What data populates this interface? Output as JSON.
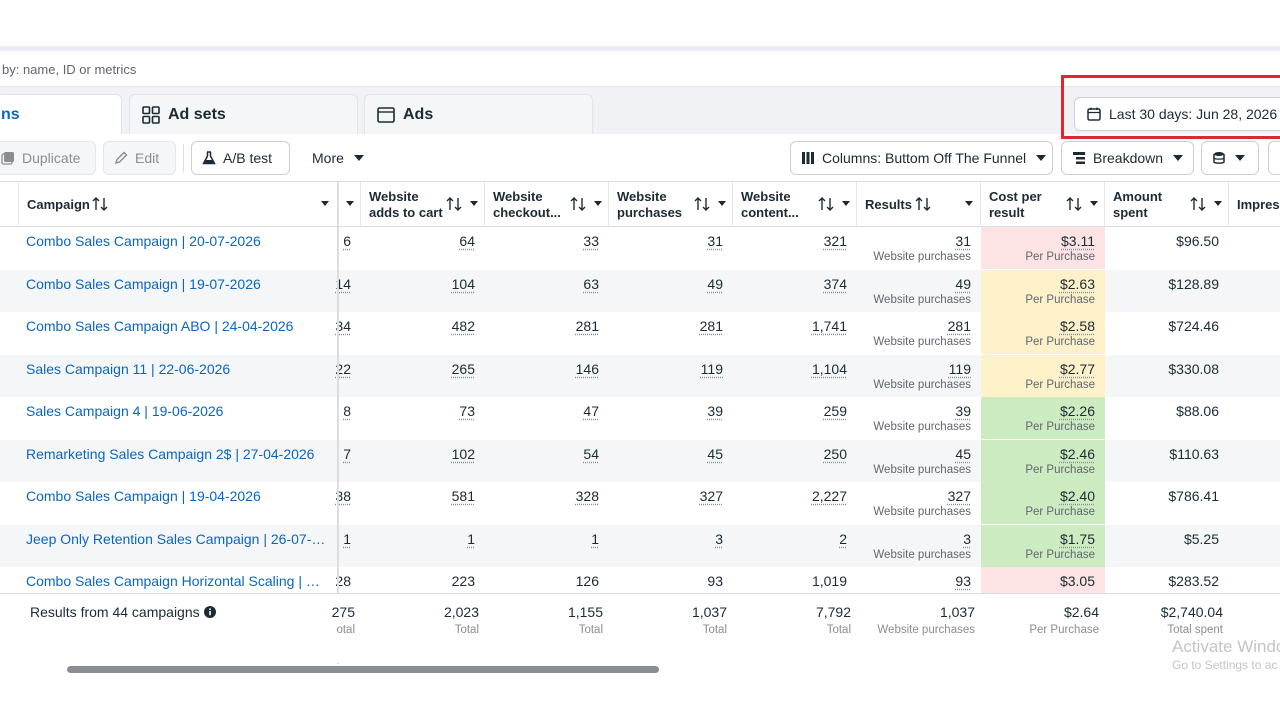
{
  "search": {
    "placeholder": "by: name, ID or metrics"
  },
  "tabs": [
    {
      "label": "ns",
      "icon": "campaign-icon"
    },
    {
      "label": "Ad sets",
      "icon": "grid-icon"
    },
    {
      "label": "Ads",
      "icon": "ad-icon"
    }
  ],
  "date_range": {
    "label": "Last 30 days: Jun 28, 2026 -",
    "icon": "calendar-icon",
    "highlight_color": "#e0262f"
  },
  "toolbar": {
    "duplicate": "Duplicate",
    "edit": "Edit",
    "ab_test": "A/B test",
    "more": "More",
    "columns": "Columns: Buttom Off The Funnel",
    "breakdown": "Breakdown"
  },
  "table": {
    "headers": {
      "campaign": "Campaign",
      "adds_to_cart": [
        "Website",
        "adds to cart"
      ],
      "checkout": [
        "Website",
        "checkout..."
      ],
      "purchases": [
        "Website",
        "purchases"
      ],
      "content": [
        "Website",
        "content..."
      ],
      "results": "Results",
      "cost_per_result": [
        "Cost per",
        "result"
      ],
      "amount_spent": [
        "Amount",
        "spent"
      ],
      "impressions": "Impres"
    },
    "rows": [
      {
        "name": "Combo Sales Campaign | 20-07-2026",
        "c0": "6",
        "cart": "64",
        "checkout": "33",
        "purchases": "31",
        "content": "321",
        "results": "31",
        "results_sub": "Website purchases",
        "cpr": "$3.11",
        "cpr_sub": "Per Purchase",
        "cpr_color": "#fde3e3",
        "spent": "$96.50"
      },
      {
        "name": "Combo Sales Campaign | 19-07-2026",
        "c0": "14",
        "cart": "104",
        "checkout": "63",
        "purchases": "49",
        "content": "374",
        "results": "49",
        "results_sub": "Website purchases",
        "cpr": "$2.63",
        "cpr_sub": "Per Purchase",
        "cpr_color": "#fdf1c9",
        "spent": "$128.89"
      },
      {
        "name": "Combo Sales Campaign ABO | 24-04-2026",
        "c0": "34",
        "cart": "482",
        "checkout": "281",
        "purchases": "281",
        "content": "1,741",
        "results": "281",
        "results_sub": "Website purchases",
        "cpr": "$2.58",
        "cpr_sub": "Per Purchase",
        "cpr_color": "#fdf1c9",
        "spent": "$724.46"
      },
      {
        "name": "Sales Campaign 11 | 22-06-2026",
        "c0": "22",
        "cart": "265",
        "checkout": "146",
        "purchases": "119",
        "content": "1,104",
        "results": "119",
        "results_sub": "Website purchases",
        "cpr": "$2.77",
        "cpr_sub": "Per Purchase",
        "cpr_color": "#fdf1c9",
        "spent": "$330.08"
      },
      {
        "name": "Sales Campaign 4 | 19-06-2026",
        "c0": "8",
        "cart": "73",
        "checkout": "47",
        "purchases": "39",
        "content": "259",
        "results": "39",
        "results_sub": "Website purchases",
        "cpr": "$2.26",
        "cpr_sub": "Per Purchase",
        "cpr_color": "#cdebc0",
        "spent": "$88.06"
      },
      {
        "name": "Remarketing Sales Campaign 2$ | 27-04-2026",
        "c0": "7",
        "cart": "102",
        "checkout": "54",
        "purchases": "45",
        "content": "250",
        "results": "45",
        "results_sub": "Website purchases",
        "cpr": "$2.46",
        "cpr_sub": "Per Purchase",
        "cpr_color": "#cdebc0",
        "spent": "$110.63"
      },
      {
        "name": "Combo Sales Campaign | 19-04-2026",
        "c0": "38",
        "cart": "581",
        "checkout": "328",
        "purchases": "327",
        "content": "2,227",
        "results": "327",
        "results_sub": "Website purchases",
        "cpr": "$2.40",
        "cpr_sub": "Per Purchase",
        "cpr_color": "#cdebc0",
        "spent": "$786.41"
      },
      {
        "name": "Jeep Only Retention Sales Campaign | 26-07-20...",
        "c0": "1",
        "cart": "1",
        "checkout": "1",
        "purchases": "3",
        "content": "2",
        "results": "3",
        "results_sub": "Website purchases",
        "cpr": "$1.75",
        "cpr_sub": "Per Purchase",
        "cpr_color": "#cdebc0",
        "spent": "$5.25"
      },
      {
        "name": "Combo Sales Campaign Horizontal Scaling | 08-0...",
        "c0": "28",
        "cart": "223",
        "checkout": "126",
        "purchases": "93",
        "content": "1,019",
        "results": "93",
        "results_sub": "",
        "cpr": "$3.05",
        "cpr_sub": "",
        "cpr_color": "#fde3e3",
        "spent": "$283.52"
      }
    ],
    "footer": {
      "label": "Results from 44 campaigns",
      "c0": "275",
      "c0_sub": "otal",
      "cart": "2,023",
      "cart_sub": "Total",
      "checkout": "1,155",
      "checkout_sub": "Total",
      "purchases": "1,037",
      "purchases_sub": "Total",
      "content": "7,792",
      "content_sub": "Total",
      "results": "1,037",
      "results_sub": "Website purchases",
      "cpr": "$2.64",
      "cpr_sub": "Per Purchase",
      "spent": "$2,740.04",
      "spent_sub": "Total spent"
    }
  },
  "watermark": {
    "line1": "Activate Windo",
    "line2": "Go to Settings to ac"
  }
}
